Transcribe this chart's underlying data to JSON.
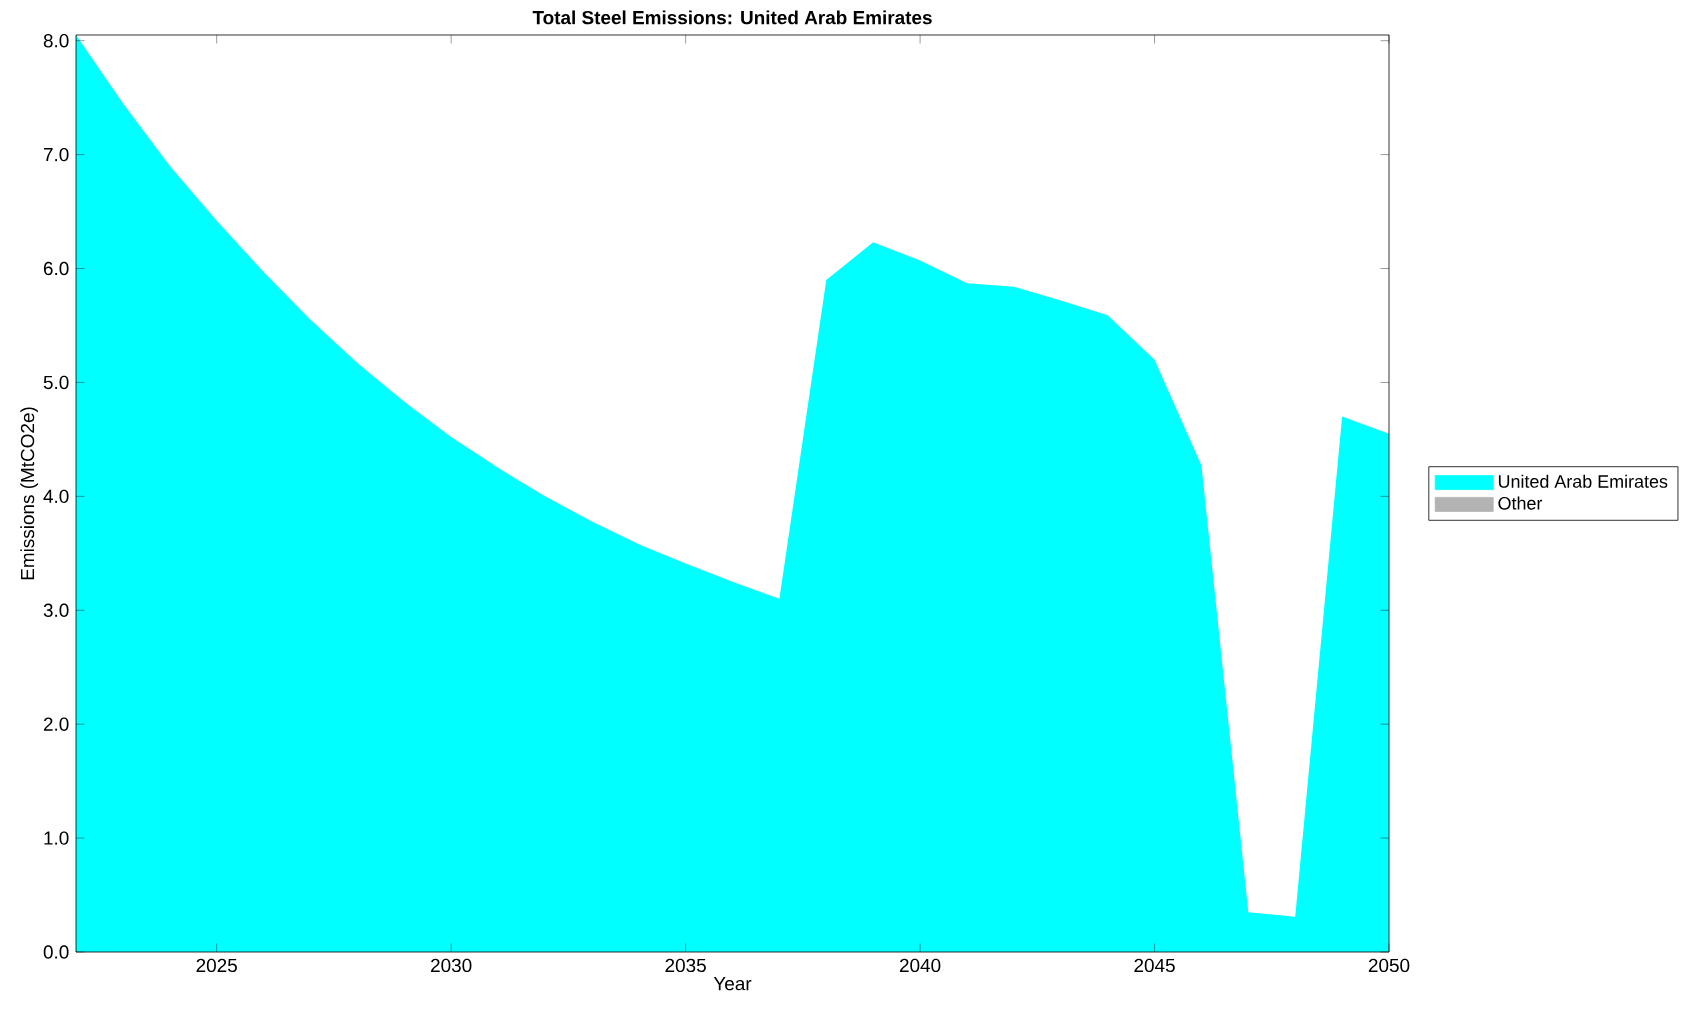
{
  "chart_data": {
    "type": "area",
    "title": "Total Steel Emissions: United Arab Emirates",
    "xlabel": "Year",
    "ylabel": "Emissions (MtCO2e)",
    "x": [
      2022,
      2023,
      2024,
      2025,
      2026,
      2027,
      2028,
      2029,
      2030,
      2031,
      2032,
      2033,
      2034,
      2035,
      2036,
      2037,
      2038,
      2039,
      2040,
      2041,
      2042,
      2043,
      2044,
      2045,
      2046,
      2047,
      2048,
      2049,
      2050
    ],
    "series": [
      {
        "name": "United Arab Emirates",
        "color": "#00ffff",
        "values": [
          8.05,
          7.45,
          6.9,
          6.42,
          5.97,
          5.55,
          5.17,
          4.83,
          4.52,
          4.25,
          4.0,
          3.78,
          3.58,
          3.41,
          3.25,
          3.1,
          5.9,
          6.23,
          6.07,
          5.87,
          5.84,
          5.72,
          5.59,
          5.2,
          4.27,
          0.35,
          0.31,
          4.7,
          4.55
        ]
      },
      {
        "name": "Other",
        "color": "#b3b3b3",
        "values": [
          null,
          null,
          null,
          null,
          null,
          null,
          null,
          null,
          null,
          null,
          null,
          null,
          null,
          null,
          null,
          null,
          null,
          null,
          null,
          null,
          null,
          null,
          null,
          null,
          null,
          null,
          null,
          null,
          null
        ]
      }
    ],
    "xlim": [
      2022,
      2050
    ],
    "xticks": [
      2025,
      2030,
      2035,
      2040,
      2045,
      2050
    ],
    "ylim": [
      0,
      8.05
    ],
    "yticks": [
      {
        "value": 0,
        "label": "0.0"
      },
      {
        "value": 1,
        "label": "1.0"
      },
      {
        "value": 2,
        "label": "2.0"
      },
      {
        "value": 3,
        "label": "3.0"
      },
      {
        "value": 4,
        "label": "4.0"
      },
      {
        "value": 5,
        "label": "5.0"
      },
      {
        "value": 6,
        "label": "6.0"
      },
      {
        "value": 7,
        "label": "7.0"
      },
      {
        "value": 8,
        "label": "8.0"
      }
    ],
    "legend": "right"
  }
}
